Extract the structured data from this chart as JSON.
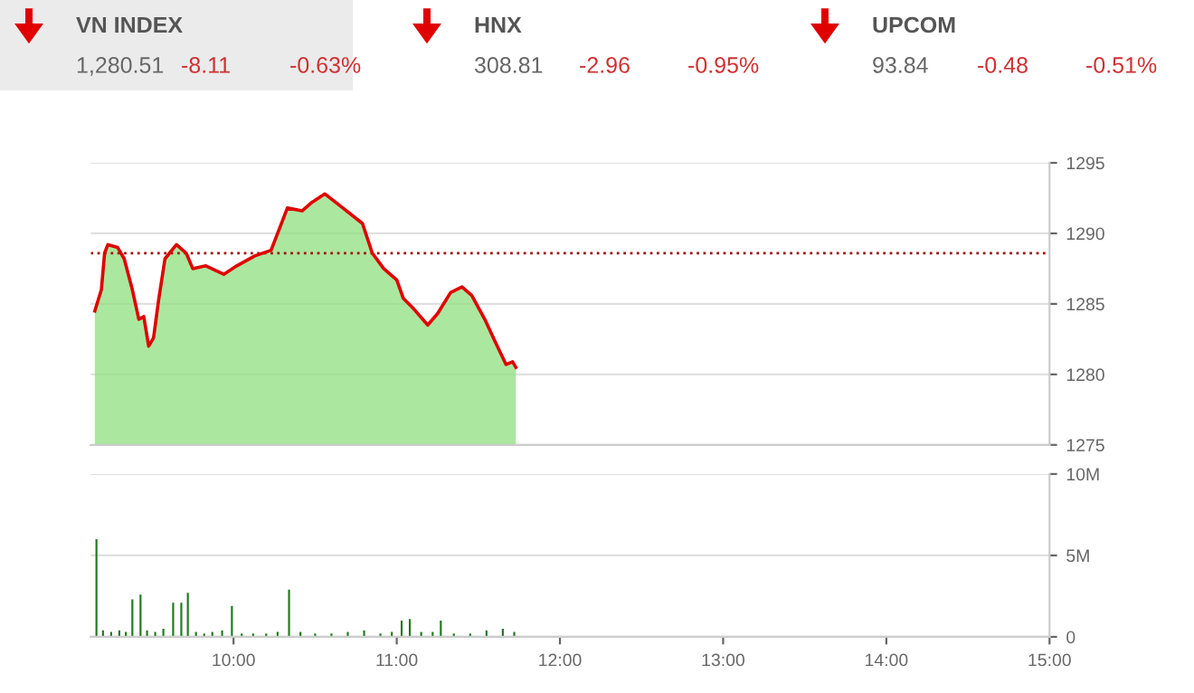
{
  "chart_data": [
    {
      "type": "other",
      "annotations": [
        "VN INDEX",
        "1,280.51",
        "-8.11",
        "-0.63%",
        "HNX",
        "308.81",
        "-2.96",
        "-0.95%",
        "UPCOM",
        "93.84",
        "-0.48",
        "-0.51%"
      ]
    },
    {
      "type": "area",
      "x": [
        9.15,
        9.19,
        9.21,
        9.23,
        9.29,
        9.33,
        9.38,
        9.42,
        9.45,
        9.48,
        9.51,
        9.54,
        9.58,
        9.65,
        9.71,
        9.75,
        9.83,
        9.94,
        10.02,
        10.13,
        10.23,
        10.33,
        10.42,
        10.48,
        10.56,
        10.67,
        10.79,
        10.85,
        10.92,
        11.0,
        11.04,
        11.1,
        11.19,
        11.25,
        11.33,
        11.4,
        11.46,
        11.54,
        11.6,
        11.67,
        11.71,
        11.73
      ],
      "series": [
        {
          "type": "area",
          "color": "#8fdf7f",
          "values": [
            1284.5,
            1286.0,
            1288.6,
            1289.2,
            1289.0,
            1288.2,
            1286.0,
            1283.9,
            1284.1,
            1282.0,
            1282.6,
            1285.2,
            1288.2,
            1289.2,
            1288.6,
            1287.5,
            1287.7,
            1287.1,
            1287.7,
            1288.4,
            1288.8,
            1291.8,
            1291.6,
            1292.2,
            1292.8,
            1291.8,
            1290.7,
            1288.6,
            1287.5,
            1286.7,
            1285.4,
            1284.7,
            1283.5,
            1284.3,
            1285.8,
            1286.2,
            1285.6,
            1283.9,
            1282.4,
            1280.7,
            1280.9,
            1280.5
          ]
        },
        {
          "type": "line",
          "color": "#e00000",
          "values": [
            1284.5,
            1286.0,
            1288.6,
            1289.2,
            1289.0,
            1288.2,
            1286.0,
            1283.9,
            1284.1,
            1282.0,
            1282.6,
            1285.2,
            1288.2,
            1289.2,
            1288.6,
            1287.5,
            1287.7,
            1287.1,
            1287.7,
            1288.4,
            1288.8,
            1291.8,
            1291.6,
            1292.2,
            1292.8,
            1291.8,
            1290.7,
            1288.6,
            1287.5,
            1286.7,
            1285.4,
            1284.7,
            1283.5,
            1284.3,
            1285.8,
            1286.2,
            1285.6,
            1283.9,
            1282.4,
            1280.7,
            1280.9,
            1280.5
          ]
        }
      ],
      "xlim": [
        9.125,
        15.0
      ],
      "ylim": [
        1275,
        1295
      ],
      "yticks": [
        1275,
        1280,
        1285,
        1290,
        1295
      ],
      "grid": "y",
      "tick_labels": "y",
      "ref_lines": [
        {
          "axis": "y",
          "value": 1288.6,
          "color": "#a01010",
          "line_style": "dotted"
        }
      ]
    },
    {
      "type": "bar",
      "x": [
        9.16,
        9.2,
        9.25,
        9.3,
        9.34,
        9.38,
        9.43,
        9.47,
        9.52,
        9.57,
        9.63,
        9.68,
        9.72,
        9.77,
        9.82,
        9.87,
        9.93,
        9.99,
        10.05,
        10.12,
        10.2,
        10.27,
        10.34,
        10.41,
        10.5,
        10.6,
        10.7,
        10.8,
        10.9,
        10.97,
        11.03,
        11.08,
        11.15,
        11.22,
        11.27,
        11.35,
        11.45,
        11.55,
        11.65,
        11.72
      ],
      "series": [
        {
          "color": "#1e7a1e",
          "values": [
            6.0,
            0.4,
            0.3,
            0.4,
            0.3,
            2.3,
            2.6,
            0.4,
            0.3,
            0.5,
            2.1,
            2.1,
            2.7,
            0.3,
            0.2,
            0.3,
            0.4,
            1.9,
            0.2,
            0.2,
            0.2,
            0.3,
            2.9,
            0.3,
            0.2,
            0.2,
            0.3,
            0.4,
            0.2,
            0.3,
            1.0,
            1.1,
            0.3,
            0.3,
            1.0,
            0.2,
            0.2,
            0.4,
            0.5,
            0.3
          ]
        }
      ],
      "xlim": [
        9.125,
        15.0
      ],
      "ylim": [
        0,
        10
      ],
      "yticks": [
        0,
        {
          "value": 5,
          "label": "5M"
        },
        {
          "value": 10,
          "label": "10M"
        }
      ],
      "xticks": [
        {
          "value": 10,
          "label": "10:00"
        },
        {
          "value": 11,
          "label": "11:00"
        },
        {
          "value": 12,
          "label": "12:00"
        },
        {
          "value": 13,
          "label": "13:00"
        },
        {
          "value": 14,
          "label": "14:00"
        },
        {
          "value": 15,
          "label": "15:00"
        }
      ],
      "grid": "y"
    }
  ]
}
